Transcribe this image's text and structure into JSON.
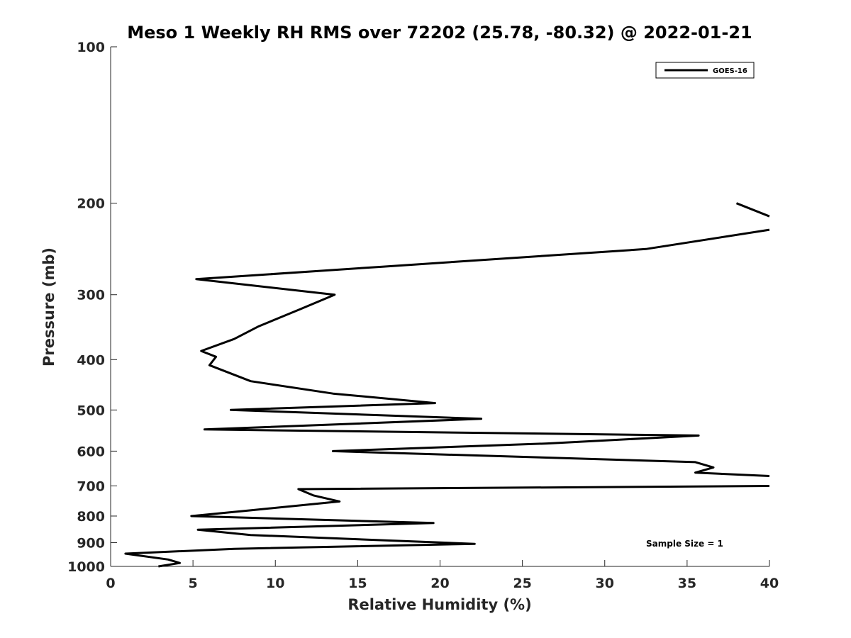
{
  "chart_data": {
    "type": "line",
    "title": "Meso 1 Weekly RH RMS over 72202 (25.78, -80.32) @ 2022-01-21",
    "xlabel": "Relative Humidity (%)",
    "ylabel": "Pressure (mb)",
    "xlim": [
      0,
      40
    ],
    "ylim": [
      100,
      1000
    ],
    "y_scale": "log",
    "y_reversed": true,
    "grid": false,
    "legend_position": "top-right",
    "x_ticks": [
      0,
      5,
      10,
      15,
      20,
      25,
      30,
      35,
      40
    ],
    "y_ticks": [
      100,
      200,
      300,
      400,
      500,
      600,
      700,
      800,
      900,
      1000
    ],
    "series": [
      {
        "name": "GOES-16",
        "color": "#000000",
        "segments": [
          [
            [
              38.0,
              200
            ],
            [
              40.0,
              212
            ]
          ],
          [
            [
              40.0,
              225
            ],
            [
              32.5,
              245
            ],
            [
              16.5,
              265
            ],
            [
              5.2,
              280
            ],
            [
              13.6,
              300
            ],
            [
              11.5,
              320
            ],
            [
              9.0,
              345
            ],
            [
              7.5,
              365
            ],
            [
              5.5,
              385
            ],
            [
              6.4,
              395
            ],
            [
              6.0,
              410
            ],
            [
              8.5,
              440
            ],
            [
              13.5,
              465
            ],
            [
              19.7,
              485
            ],
            [
              7.3,
              500
            ],
            [
              22.5,
              520
            ],
            [
              5.7,
              545
            ],
            [
              35.7,
              560
            ],
            [
              26.5,
              580
            ],
            [
              13.5,
              600
            ],
            [
              35.5,
              630
            ],
            [
              36.6,
              645
            ],
            [
              35.5,
              660
            ],
            [
              40.0,
              670
            ]
          ],
          [
            [
              40.0,
              700
            ],
            [
              11.4,
              710
            ],
            [
              12.3,
              730
            ],
            [
              13.9,
              750
            ],
            [
              8.5,
              780
            ],
            [
              4.9,
              800
            ],
            [
              19.6,
              825
            ],
            [
              5.3,
              850
            ],
            [
              8.5,
              870
            ],
            [
              22.1,
              905
            ],
            [
              7.5,
              925
            ],
            [
              0.9,
              945
            ],
            [
              3.5,
              970
            ],
            [
              4.2,
              985
            ],
            [
              2.9,
              1000
            ]
          ]
        ]
      }
    ],
    "annotations": [
      "Sample Size = 1"
    ]
  }
}
